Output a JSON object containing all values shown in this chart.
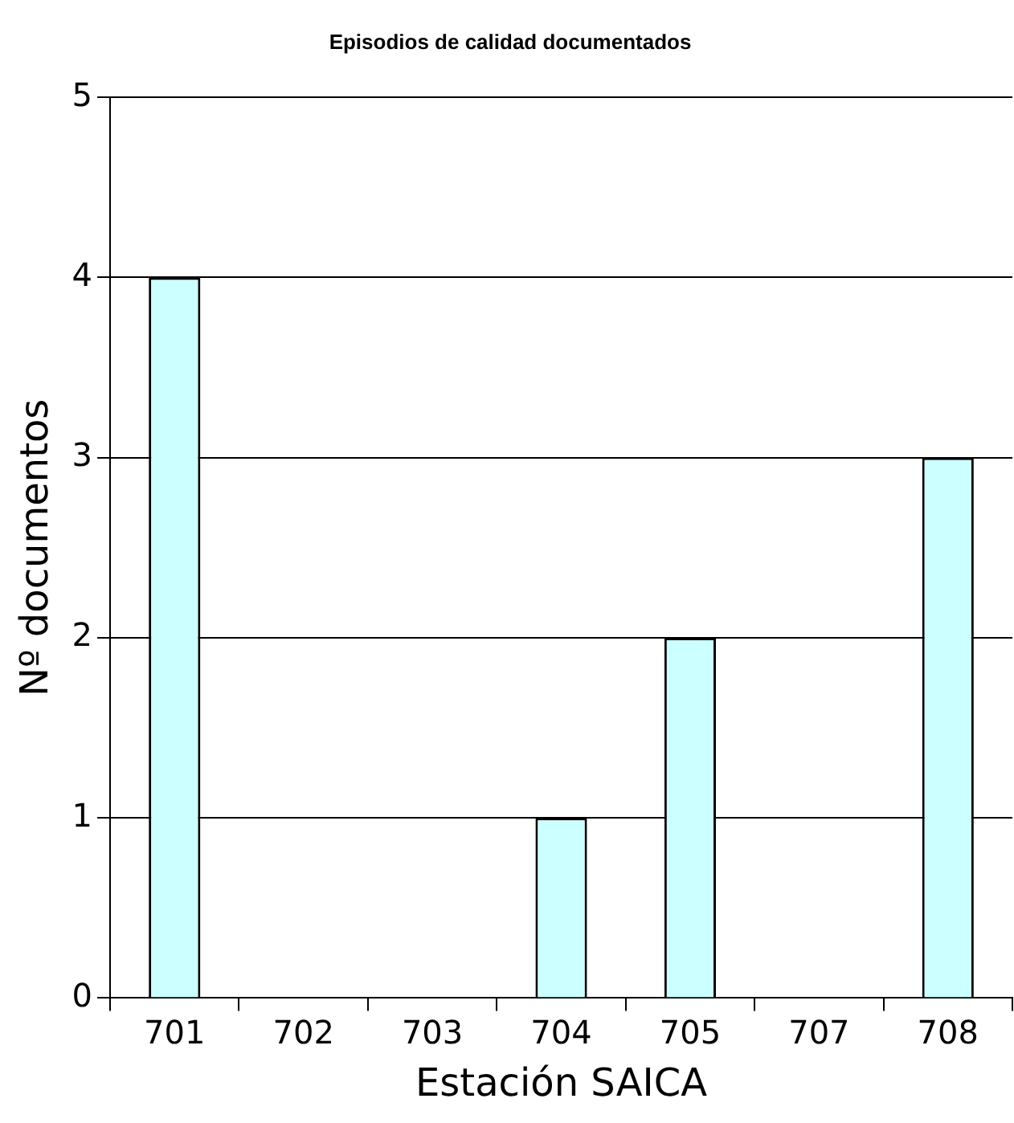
{
  "chart_data": {
    "type": "bar",
    "title": "Episodios de calidad documentados",
    "xlabel": "Estación SAICA",
    "ylabel": "Nº documentos",
    "categories": [
      "701",
      "702",
      "703",
      "704",
      "705",
      "707",
      "708"
    ],
    "values": [
      4,
      0,
      0,
      1,
      2,
      0,
      3
    ],
    "color": "#ccffff",
    "ylim": [
      0,
      5
    ],
    "yticks": [
      0,
      1,
      2,
      3,
      4,
      5
    ],
    "grid": "y",
    "legend": false
  }
}
